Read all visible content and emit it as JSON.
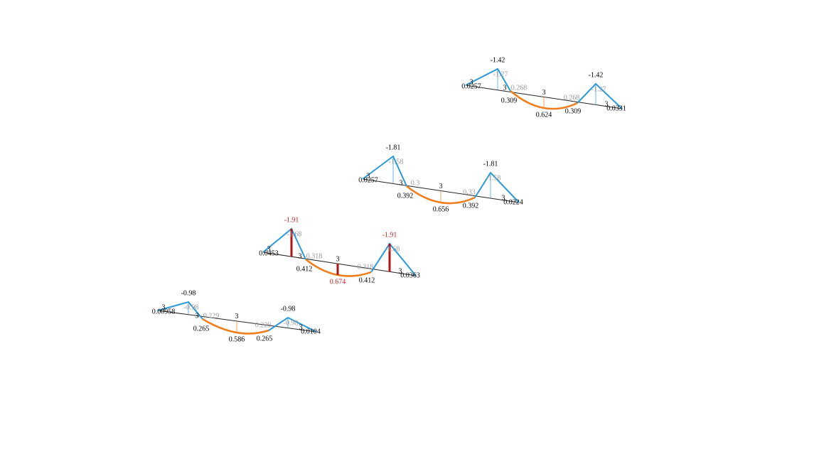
{
  "beams": [
    {
      "peaks": [
        "-1.42",
        "-1.42"
      ],
      "peak_notes": [
        "-1.27",
        "-1.27"
      ],
      "spans": [
        "3",
        "3",
        "3",
        "3"
      ],
      "sag_notes": [
        "0.268",
        "0.268"
      ],
      "moments": [
        "0.309",
        "0.624",
        "0.309"
      ],
      "ends": [
        "0.0257",
        "0.0331"
      ],
      "critical": false
    },
    {
      "peaks": [
        "-1.81",
        "-1.81"
      ],
      "peak_notes": [
        "-1.58",
        "-1.58"
      ],
      "spans": [
        "3",
        "3",
        "3",
        "3"
      ],
      "sag_notes": [
        "0.3",
        "0.33"
      ],
      "moments": [
        "0.392",
        "0.656",
        "0.392"
      ],
      "ends": [
        "0.0257",
        "0.0224"
      ],
      "critical": false
    },
    {
      "peaks": [
        "-1.91",
        "-1.91"
      ],
      "peak_notes": [
        "-1.68",
        "-1.68"
      ],
      "spans": [
        "3",
        "3",
        "3",
        "3"
      ],
      "sag_notes": [
        "0.318",
        "0.318"
      ],
      "moments": [
        "0.412",
        "0.674",
        "0.412"
      ],
      "ends": [
        "0.0453",
        "0.0363"
      ],
      "critical": true
    },
    {
      "peaks": [
        "-0.98",
        "-0.98"
      ],
      "peak_notes": [
        "-0.98",
        "-0.98"
      ],
      "spans": [
        "3",
        "3",
        "3",
        "3"
      ],
      "sag_notes": [
        "0.229",
        "0.229"
      ],
      "moments": [
        "0.265",
        "0.586",
        "0.265"
      ],
      "ends": [
        "0.00958",
        "0.0104"
      ],
      "critical": false
    }
  ]
}
